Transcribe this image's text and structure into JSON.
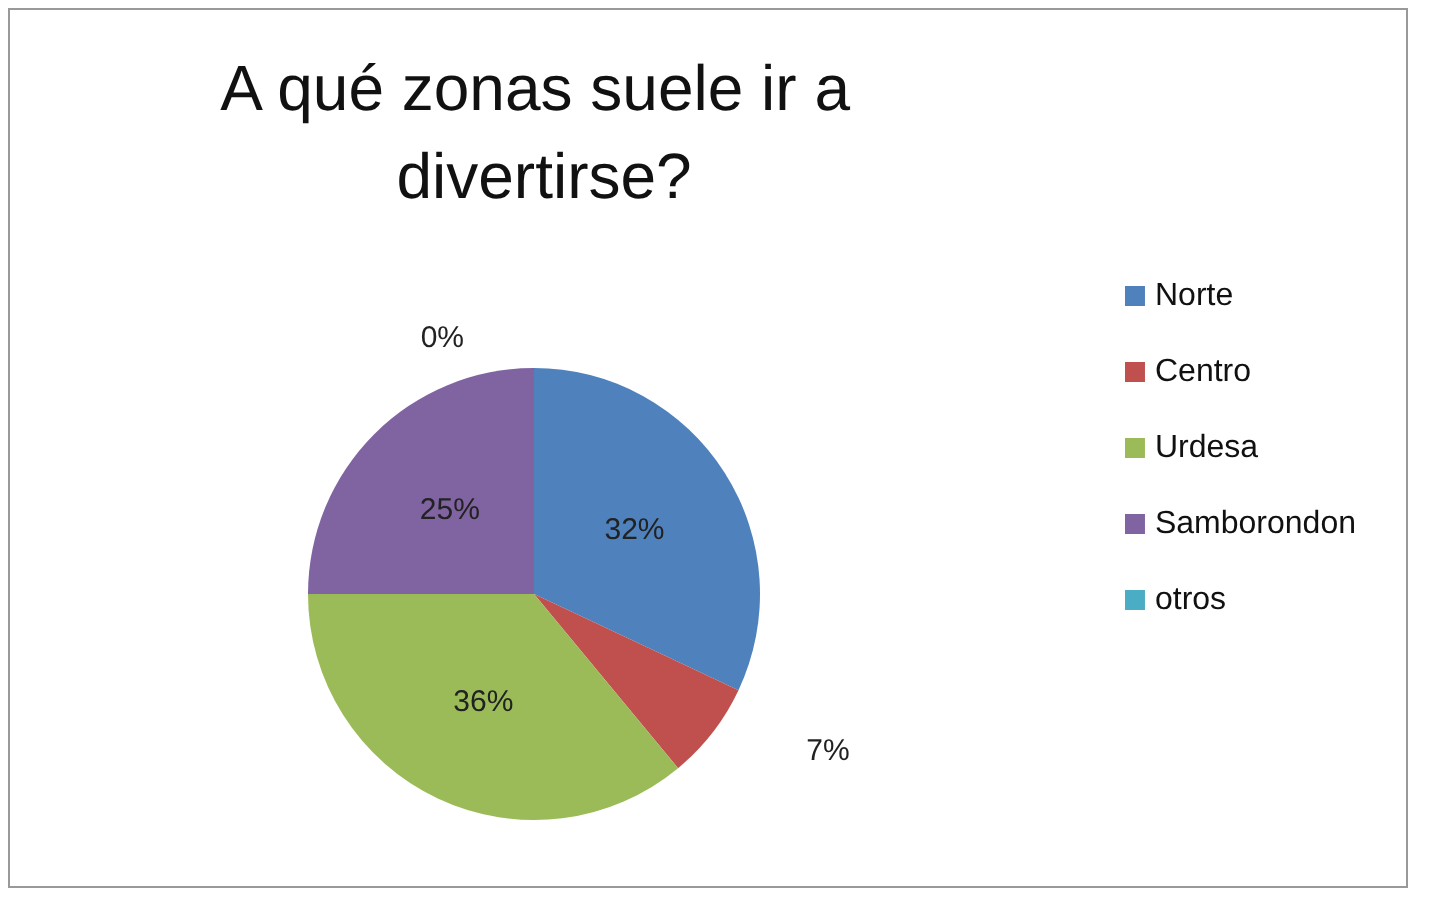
{
  "chart_data": {
    "type": "pie",
    "title": "A qué zonas suele ir a divertirse?",
    "categories": [
      "Norte",
      "Centro",
      "Urdesa",
      "Samborondon",
      "otros"
    ],
    "values": [
      32,
      7,
      36,
      25,
      0
    ],
    "colors": [
      "#4f81bd",
      "#c0504d",
      "#9bbb59",
      "#8064a2",
      "#4bacc6"
    ],
    "value_labels": [
      "32%",
      "7%",
      "36%",
      "25%",
      "0%"
    ],
    "legend": "right"
  }
}
